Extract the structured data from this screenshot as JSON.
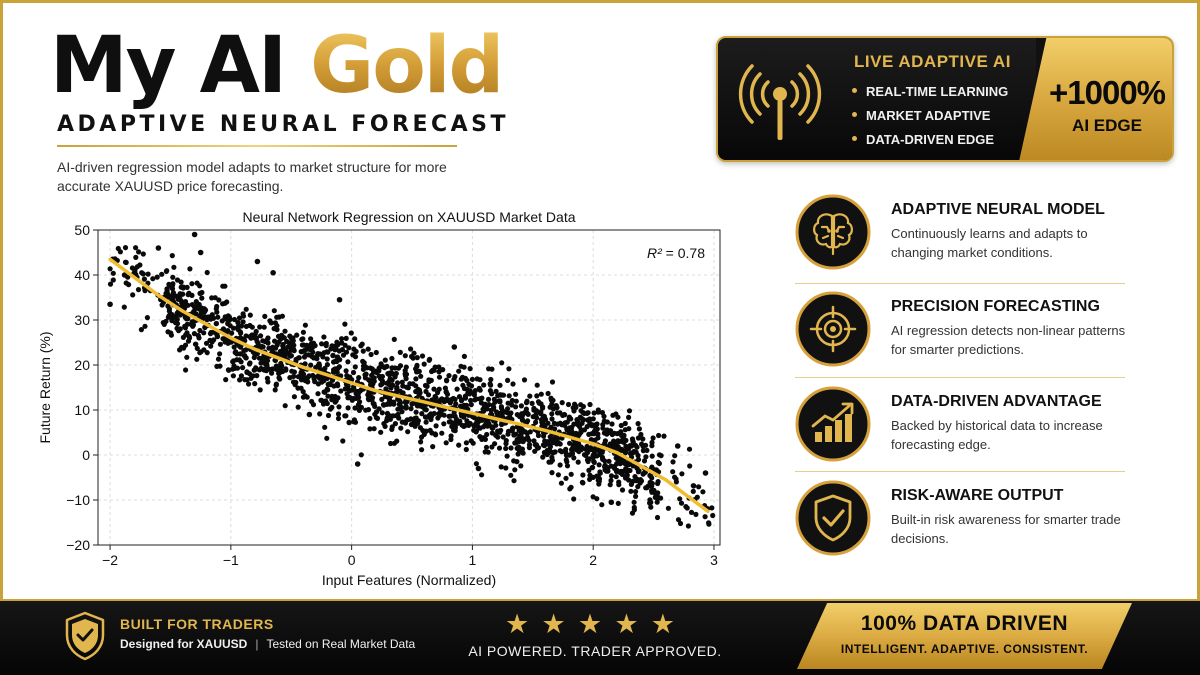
{
  "header": {
    "title_main": "My AI ",
    "title_accent": "Gold",
    "subtitle": "ADAPTIVE NEURAL FORECAST",
    "description": "AI-driven regression model adapts to market structure for more accurate XAUUSD price forecasting."
  },
  "live_card": {
    "heading": "LIVE ADAPTIVE AI",
    "items": [
      "REAL-TIME LEARNING",
      "MARKET ADAPTIVE",
      "DATA-DRIVEN EDGE"
    ],
    "edge_value": "+1000%",
    "edge_label": "AI EDGE",
    "icon": "broadcast-antenna-icon"
  },
  "features": [
    {
      "icon": "brain-icon",
      "title": "ADAPTIVE NEURAL MODEL",
      "desc": "Continuously learns and adapts to changing market conditions."
    },
    {
      "icon": "crosshair-target-icon",
      "title": "PRECISION FORECASTING",
      "desc": "AI regression detects non-linear patterns for smarter predictions."
    },
    {
      "icon": "growth-chart-icon",
      "title": "DATA-DRIVEN ADVANTAGE",
      "desc": "Backed by historical data to increase forecasting edge."
    },
    {
      "icon": "shield-check-icon",
      "title": "RISK-AWARE OUTPUT",
      "desc": "Built-in risk awareness for smarter trade decisions."
    }
  ],
  "bottom": {
    "built_heading": "BUILT FOR TRADERS",
    "built_left": "Designed for XAUUSD",
    "built_sep": "|",
    "built_right": "Tested on Real Market Data",
    "stars": 5,
    "slogan": "AI POWERED. TRADER APPROVED.",
    "badge_title": "100% DATA DRIVEN",
    "badge_sub": "INTELLIGENT. ADAPTIVE. CONSISTENT."
  },
  "colors": {
    "gold": "#e2b64e",
    "gold_dark": "#b98620",
    "black": "#0b0b0b",
    "curve": "#f0bd32"
  },
  "chart_data": {
    "type": "scatter",
    "title": "Neural Network Regression on XAUUSD Market Data",
    "xlabel": "Input Features (Normalized)",
    "ylabel": "Future Return (%)",
    "xlim": [
      -2.1,
      3.05
    ],
    "ylim": [
      -20,
      50
    ],
    "xticks": [
      -2,
      -1,
      0,
      1,
      2,
      3
    ],
    "xtick_labels": [
      "−2",
      "−1",
      "0",
      "1",
      "2",
      "3"
    ],
    "yticks": [
      -20,
      -10,
      0,
      10,
      20,
      30,
      40,
      50
    ],
    "ytick_labels": [
      "−20",
      "−10",
      "0",
      "10",
      "20",
      "30",
      "40",
      "50"
    ],
    "grid": true,
    "annotation": {
      "label": "R²",
      "value": "0.78",
      "position": "top-right"
    },
    "fit_curve": {
      "x": [
        -2.0,
        -1.8,
        -1.6,
        -1.4,
        -1.2,
        -1.0,
        -0.8,
        -0.6,
        -0.4,
        -0.2,
        0.0,
        0.2,
        0.4,
        0.6,
        0.8,
        1.0,
        1.2,
        1.4,
        1.6,
        1.8,
        2.0,
        2.2,
        2.4,
        2.6,
        2.8,
        2.95
      ],
      "y": [
        43.5,
        39.5,
        35.5,
        32.0,
        29.0,
        26.0,
        23.5,
        21.5,
        19.5,
        17.8,
        16.0,
        14.3,
        13.0,
        11.8,
        10.5,
        9.3,
        8.0,
        6.8,
        5.5,
        4.0,
        2.5,
        0.5,
        -2.5,
        -5.5,
        -9.5,
        -12.5
      ]
    },
    "scatter": {
      "description": "~2000 noisy points scattered around the fitted curve",
      "x_range": [
        -2.0,
        3.0
      ],
      "noise_sd": 4.5,
      "visible_outliers": [
        {
          "x": -2.0,
          "y": 33.5
        },
        {
          "x": -1.88,
          "y": 40
        },
        {
          "x": -1.6,
          "y": 46
        },
        {
          "x": -1.3,
          "y": 49
        },
        {
          "x": -1.25,
          "y": 45
        },
        {
          "x": -0.78,
          "y": 43
        },
        {
          "x": -0.65,
          "y": 40.5
        },
        {
          "x": -0.1,
          "y": 34.5
        },
        {
          "x": 0.85,
          "y": 24
        },
        {
          "x": 2.93,
          "y": -4
        },
        {
          "x": 2.7,
          "y": 2
        },
        {
          "x": 2.15,
          "y": -10.5
        },
        {
          "x": 0.05,
          "y": -2
        },
        {
          "x": -0.35,
          "y": 9
        },
        {
          "x": 1.05,
          "y": -3
        }
      ]
    }
  }
}
